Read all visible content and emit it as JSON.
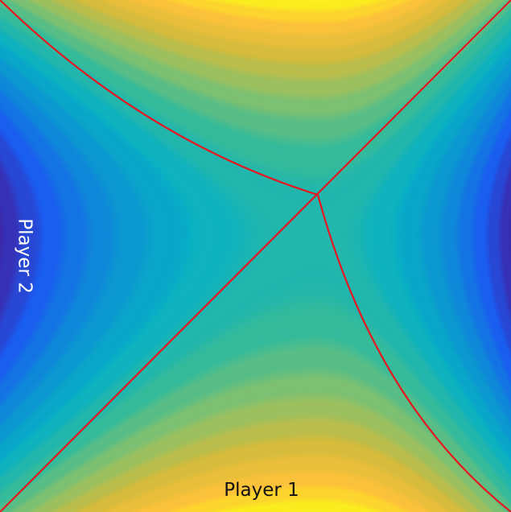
{
  "labels": {
    "bottom": "Player 1",
    "left": "Player 2"
  },
  "colors": {
    "boundary": "#e8151f",
    "colormap": [
      "#3e26a8",
      "#1a5cf0",
      "#0d8ed6",
      "#08b0c4",
      "#36bb9a",
      "#8cc169",
      "#d3bb3c",
      "#fec23a",
      "#f9fb15"
    ],
    "bottom_label": "#111111",
    "left_label": "#ffffff"
  }
}
